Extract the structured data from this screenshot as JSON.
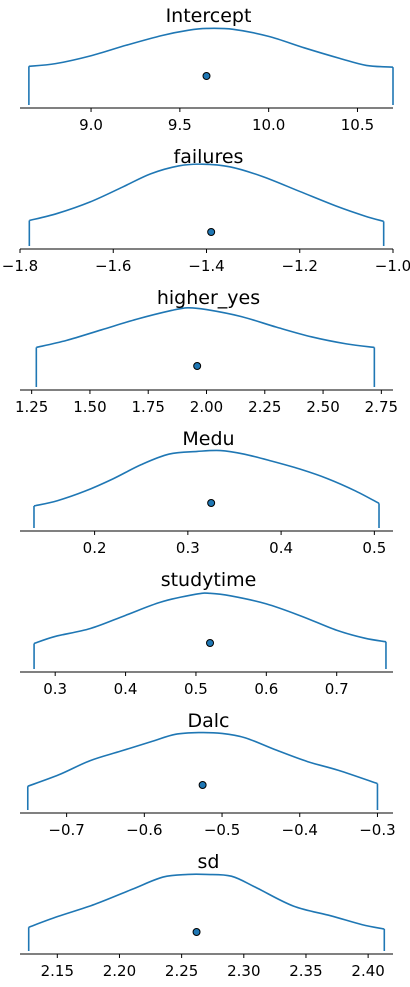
{
  "chart_data": {
    "type": "line",
    "color": "#1f77b4",
    "panels": [
      {
        "title": "Intercept",
        "xlim": [
          8.6,
          10.7
        ],
        "range": [
          8.65,
          10.7
        ],
        "ticks": [
          9.0,
          9.5,
          10.0,
          10.5
        ],
        "tick_labels": [
          "9.0",
          "9.5",
          "10.0",
          "10.5"
        ],
        "point_estimate": 9.65,
        "density": [
          [
            8.65,
            0.44
          ],
          [
            8.8,
            0.47
          ],
          [
            9.0,
            0.56
          ],
          [
            9.2,
            0.68
          ],
          [
            9.4,
            0.79
          ],
          [
            9.55,
            0.85
          ],
          [
            9.65,
            0.87
          ],
          [
            9.8,
            0.86
          ],
          [
            10.0,
            0.78
          ],
          [
            10.2,
            0.65
          ],
          [
            10.4,
            0.53
          ],
          [
            10.55,
            0.45
          ],
          [
            10.7,
            0.43
          ]
        ]
      },
      {
        "title": "failures",
        "xlim": [
          -1.8,
          -1.0
        ],
        "range": [
          -1.78,
          -1.02
        ],
        "ticks": [
          -1.8,
          -1.6,
          -1.4,
          -1.2,
          -1.0
        ],
        "tick_labels": [
          "−1.8",
          "−1.6",
          "−1.4",
          "−1.2",
          "−1.0"
        ],
        "point_estimate": -1.39,
        "density": [
          [
            -1.78,
            0.29
          ],
          [
            -1.72,
            0.37
          ],
          [
            -1.65,
            0.5
          ],
          [
            -1.58,
            0.67
          ],
          [
            -1.52,
            0.82
          ],
          [
            -1.46,
            0.91
          ],
          [
            -1.41,
            0.93
          ],
          [
            -1.35,
            0.9
          ],
          [
            -1.28,
            0.79
          ],
          [
            -1.2,
            0.62
          ],
          [
            -1.12,
            0.45
          ],
          [
            -1.06,
            0.34
          ],
          [
            -1.02,
            0.28
          ]
        ]
      },
      {
        "title": "higher_yes",
        "xlim": [
          1.2,
          2.8
        ],
        "range": [
          1.27,
          2.72
        ],
        "ticks": [
          1.25,
          1.5,
          1.75,
          2.0,
          2.25,
          2.5,
          2.75
        ],
        "tick_labels": [
          "1.25",
          "1.50",
          "1.75",
          "2.00",
          "2.25",
          "2.50",
          "2.75"
        ],
        "point_estimate": 1.96,
        "density": [
          [
            1.27,
            0.45
          ],
          [
            1.4,
            0.53
          ],
          [
            1.55,
            0.65
          ],
          [
            1.7,
            0.77
          ],
          [
            1.85,
            0.87
          ],
          [
            1.92,
            0.9
          ],
          [
            2.0,
            0.88
          ],
          [
            2.15,
            0.8
          ],
          [
            2.3,
            0.68
          ],
          [
            2.45,
            0.57
          ],
          [
            2.6,
            0.49
          ],
          [
            2.72,
            0.45
          ]
        ]
      },
      {
        "title": "Medu",
        "xlim": [
          0.12,
          0.52
        ],
        "range": [
          0.135,
          0.505
        ],
        "ticks": [
          0.2,
          0.3,
          0.4,
          0.5
        ],
        "tick_labels": [
          "0.2",
          "0.3",
          "0.4",
          "0.5"
        ],
        "point_estimate": 0.325,
        "density": [
          [
            0.135,
            0.25
          ],
          [
            0.16,
            0.31
          ],
          [
            0.19,
            0.42
          ],
          [
            0.22,
            0.56
          ],
          [
            0.25,
            0.72
          ],
          [
            0.28,
            0.84
          ],
          [
            0.31,
            0.87
          ],
          [
            0.335,
            0.88
          ],
          [
            0.36,
            0.84
          ],
          [
            0.39,
            0.76
          ],
          [
            0.42,
            0.67
          ],
          [
            0.45,
            0.56
          ],
          [
            0.48,
            0.42
          ],
          [
            0.505,
            0.28
          ]
        ]
      },
      {
        "title": "studytime",
        "xlim": [
          0.25,
          0.78
        ],
        "range": [
          0.27,
          0.77
        ],
        "ticks": [
          0.3,
          0.4,
          0.5,
          0.6,
          0.7
        ],
        "tick_labels": [
          "0.3",
          "0.4",
          "0.5",
          "0.6",
          "0.7"
        ],
        "point_estimate": 0.52,
        "density": [
          [
            0.27,
            0.29
          ],
          [
            0.3,
            0.37
          ],
          [
            0.35,
            0.46
          ],
          [
            0.4,
            0.61
          ],
          [
            0.45,
            0.76
          ],
          [
            0.5,
            0.85
          ],
          [
            0.52,
            0.86
          ],
          [
            0.55,
            0.83
          ],
          [
            0.6,
            0.74
          ],
          [
            0.65,
            0.6
          ],
          [
            0.7,
            0.44
          ],
          [
            0.74,
            0.35
          ],
          [
            0.77,
            0.31
          ]
        ]
      },
      {
        "title": "Dalc",
        "xlim": [
          -0.76,
          -0.28
        ],
        "range": [
          -0.75,
          -0.3
        ],
        "ticks": [
          -0.7,
          -0.6,
          -0.5,
          -0.4,
          -0.3
        ],
        "tick_labels": [
          "−0.7",
          "−0.6",
          "−0.5",
          "−0.4",
          "−0.3"
        ],
        "point_estimate": -0.525,
        "density": [
          [
            -0.75,
            0.27
          ],
          [
            -0.71,
            0.4
          ],
          [
            -0.67,
            0.56
          ],
          [
            -0.63,
            0.67
          ],
          [
            -0.59,
            0.78
          ],
          [
            -0.56,
            0.86
          ],
          [
            -0.53,
            0.88
          ],
          [
            -0.5,
            0.87
          ],
          [
            -0.47,
            0.82
          ],
          [
            -0.43,
            0.68
          ],
          [
            -0.39,
            0.55
          ],
          [
            -0.35,
            0.45
          ],
          [
            -0.3,
            0.3
          ]
        ]
      },
      {
        "title": "sd",
        "xlim": [
          2.12,
          2.42
        ],
        "range": [
          2.127,
          2.413
        ],
        "ticks": [
          2.15,
          2.2,
          2.25,
          2.3,
          2.35,
          2.4
        ],
        "tick_labels": [
          "2.15",
          "2.20",
          "2.25",
          "2.30",
          "2.35",
          "2.40"
        ],
        "point_estimate": 2.262,
        "density": [
          [
            2.127,
            0.27
          ],
          [
            2.15,
            0.39
          ],
          [
            2.18,
            0.53
          ],
          [
            2.21,
            0.7
          ],
          [
            2.235,
            0.84
          ],
          [
            2.255,
            0.87
          ],
          [
            2.27,
            0.87
          ],
          [
            2.29,
            0.85
          ],
          [
            2.31,
            0.72
          ],
          [
            2.34,
            0.51
          ],
          [
            2.37,
            0.4
          ],
          [
            2.395,
            0.3
          ],
          [
            2.413,
            0.25
          ]
        ]
      }
    ]
  }
}
